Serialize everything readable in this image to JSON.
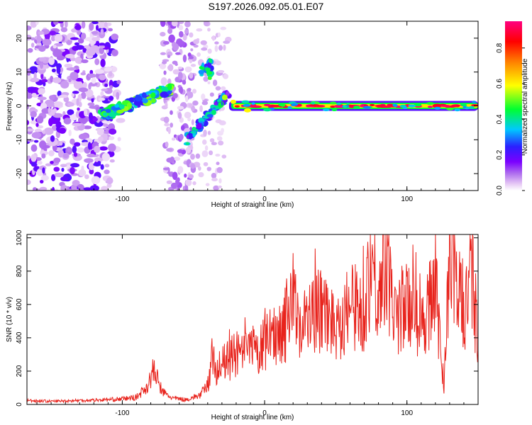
{
  "title": "S197.2026.092.05.01.E07",
  "colors": {
    "snr_line": "#e8231c",
    "axis": "#000000"
  },
  "chart_data": [
    {
      "type": "heatmap",
      "xlabel": "Height of straight line (km)",
      "ylabel": "Frequency (Hz)",
      "xlim": [
        -167,
        150
      ],
      "ylim": [
        -25,
        25
      ],
      "xticks": [
        -100,
        0,
        100
      ],
      "yticks": [
        -20,
        -10,
        0,
        10,
        20
      ],
      "colorbar": {
        "label": "Normalized spectral amplitude",
        "range": [
          0,
          0.95
        ],
        "ticks": [
          0.0,
          0.2,
          0.4,
          0.6,
          0.8
        ],
        "colormap": [
          "#ffffff",
          "#e6c8f5",
          "#b070ee",
          "#7b00ff",
          "#2a20ff",
          "#00c8ff",
          "#00ff30",
          "#ffff00",
          "#ff8000",
          "#ff0000",
          "#ff0080"
        ]
      },
      "features": [
        {
          "name": "stable tone",
          "x_range": [
            -25,
            150
          ],
          "freq_hz": 0,
          "amplitude": 0.95
        },
        {
          "name": "rising chirp",
          "x_range": [
            -115,
            -65
          ],
          "freq_hz_range": [
            -3,
            5
          ],
          "amplitude": 0.5
        },
        {
          "name": "steep chirp",
          "x_range": [
            -55,
            -25
          ],
          "freq_hz_range": [
            -10,
            13
          ],
          "amplitude": 0.45
        },
        {
          "name": "noise region",
          "x_range": [
            -167,
            -110
          ],
          "freq_hz_range": [
            -25,
            25
          ],
          "amplitude": 0.2
        }
      ]
    },
    {
      "type": "line",
      "xlabel": "Height of straight line (km)",
      "ylabel": "SNR (10 * v/v)",
      "xlim": [
        -167,
        150
      ],
      "ylim": [
        0,
        1020
      ],
      "xticks": [
        -100,
        0,
        100
      ],
      "yticks": [
        0,
        200,
        400,
        600,
        800,
        1000
      ],
      "series": [
        {
          "name": "SNR",
          "x": [
            -167,
            -150,
            -130,
            -110,
            -100,
            -90,
            -82,
            -78,
            -72,
            -65,
            -55,
            -45,
            -40,
            -37,
            -35,
            -30,
            -25,
            -20,
            -15,
            -10,
            -5,
            0,
            5,
            10,
            15,
            18,
            22,
            30,
            40,
            50,
            60,
            70,
            75,
            80,
            85,
            90,
            100,
            110,
            120,
            126,
            130,
            140,
            145,
            150
          ],
          "values": [
            25,
            20,
            25,
            30,
            35,
            45,
            120,
            215,
            80,
            40,
            30,
            60,
            120,
            300,
            230,
            250,
            280,
            320,
            300,
            350,
            320,
            380,
            420,
            480,
            500,
            770,
            560,
            520,
            600,
            500,
            620,
            580,
            970,
            650,
            1010,
            560,
            620,
            500,
            750,
            90,
            960,
            560,
            830,
            460
          ]
        }
      ]
    }
  ]
}
